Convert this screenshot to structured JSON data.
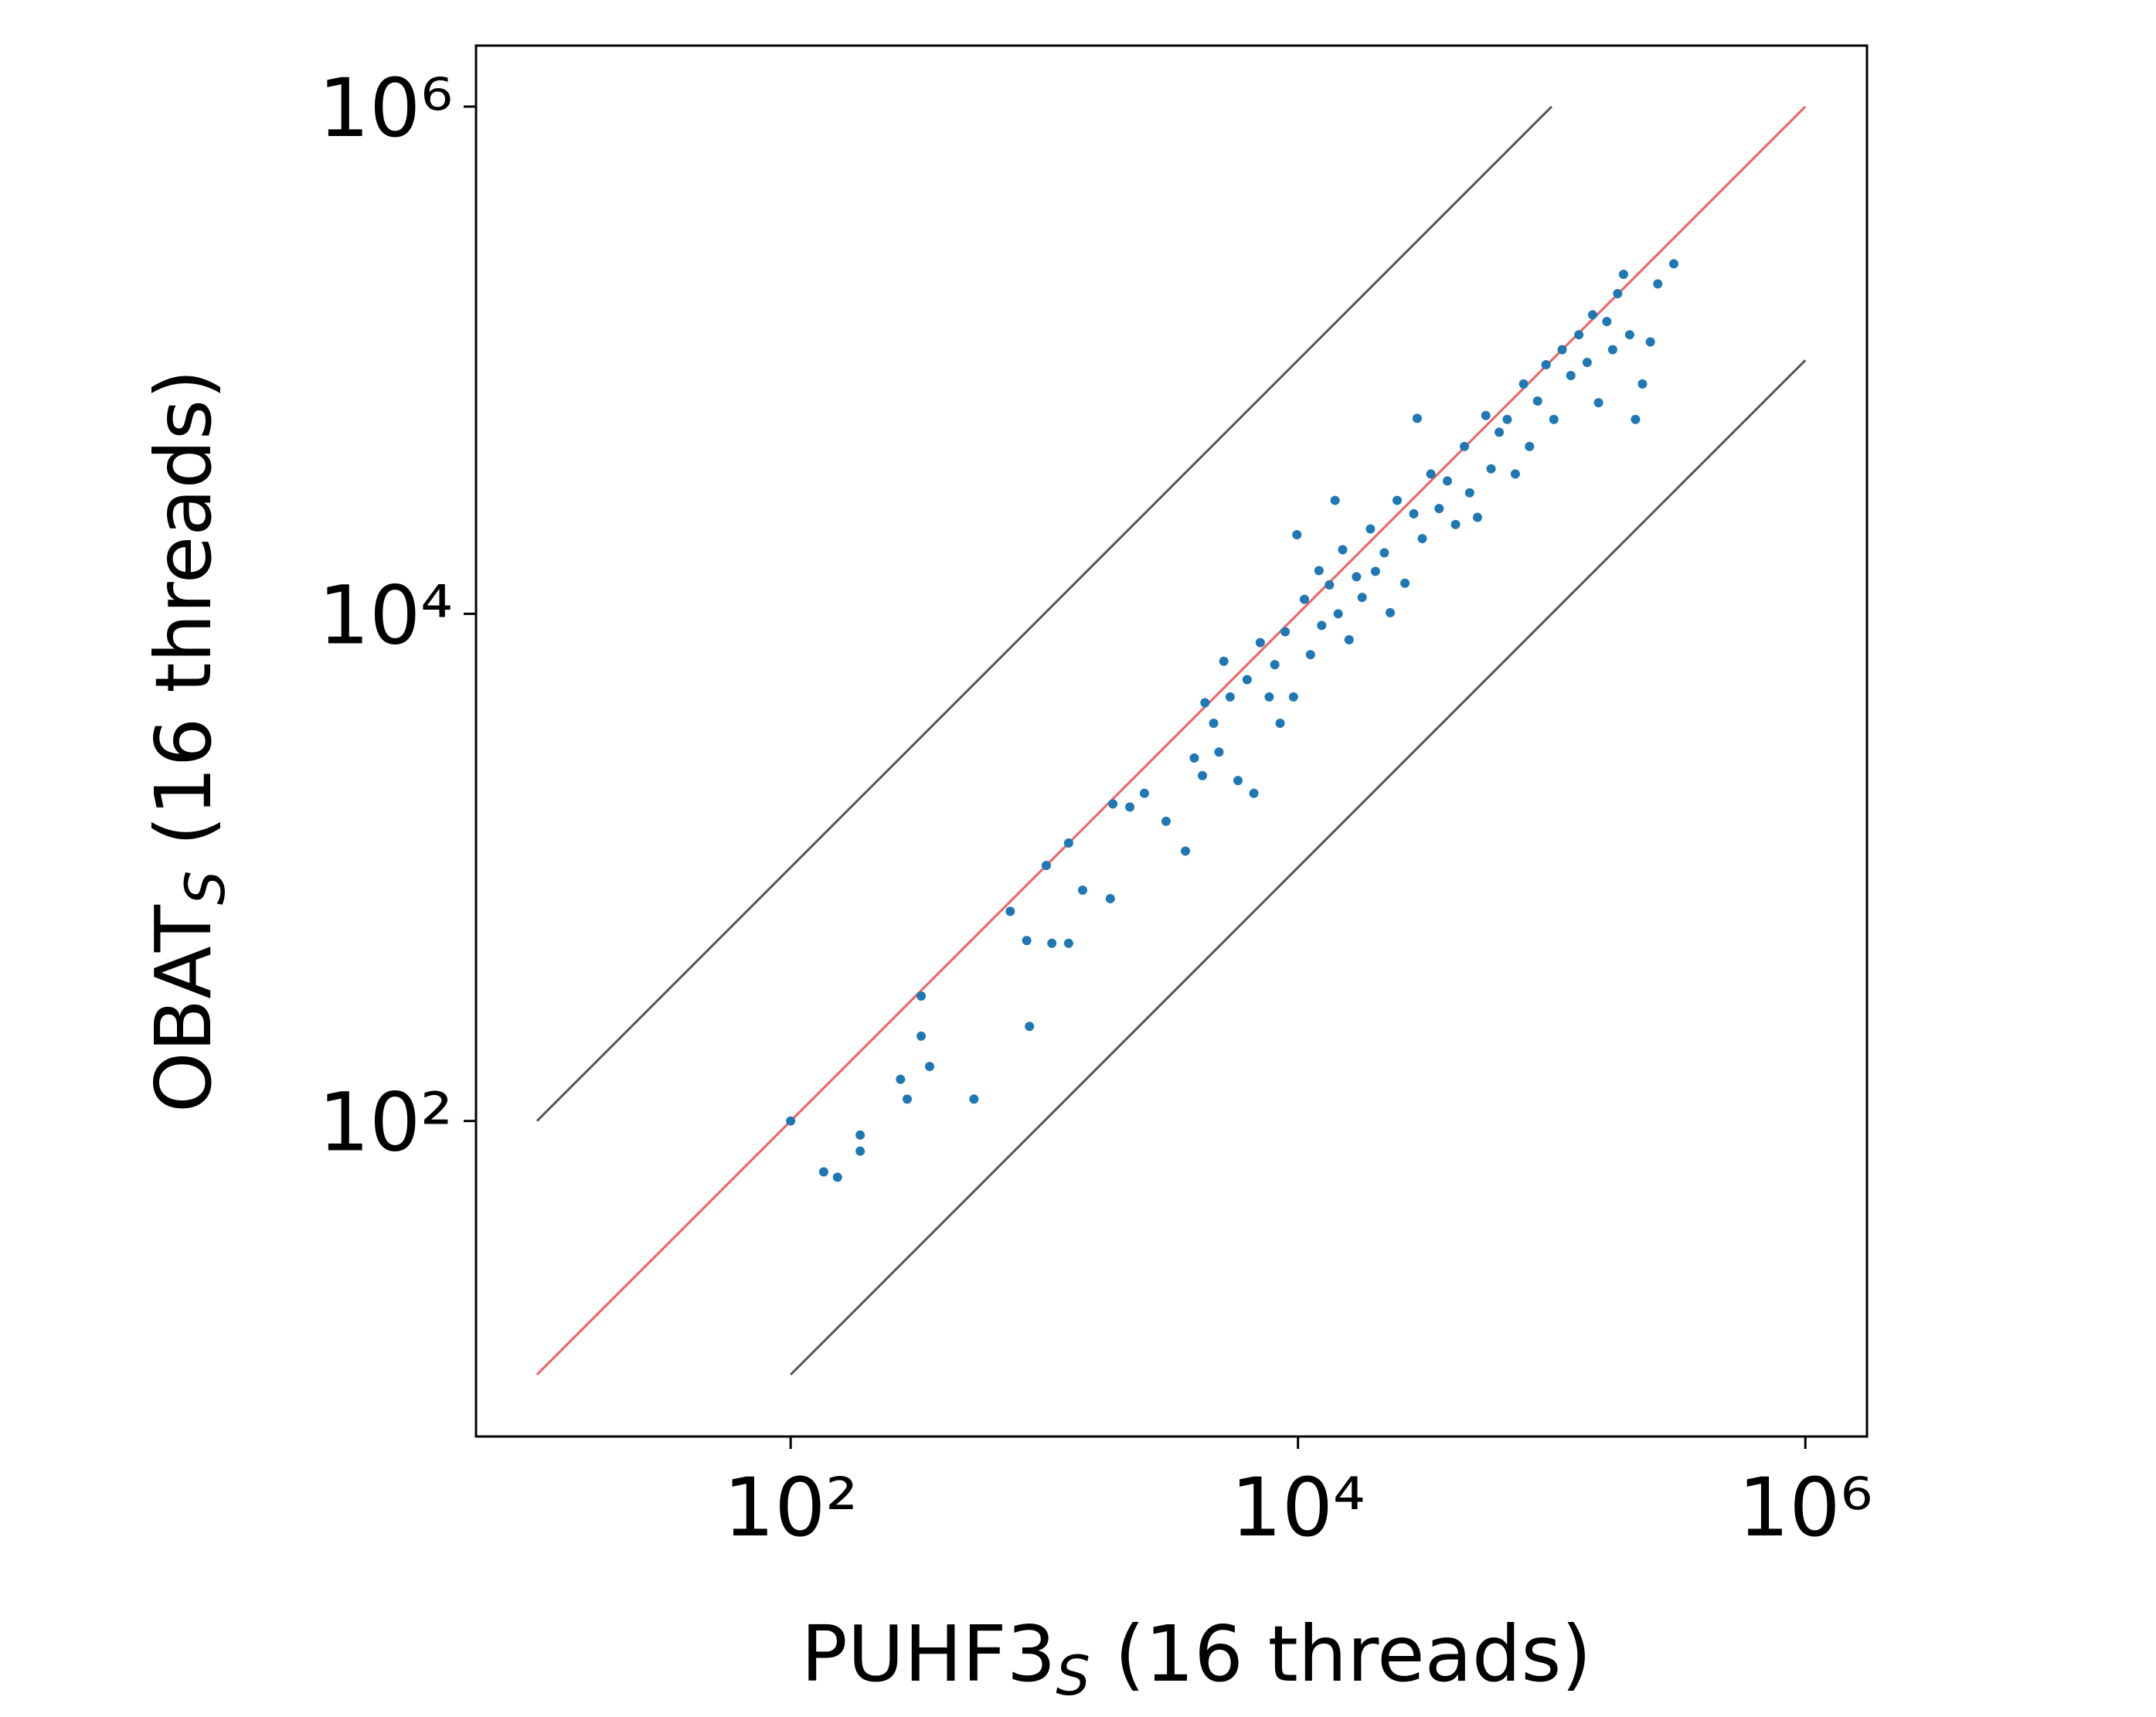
{
  "chart_data": {
    "type": "scatter",
    "xlabel": {
      "main": "PUHF3",
      "sub": "S",
      "rest": " (16 threads)"
    },
    "ylabel": {
      "main": "OBAT",
      "sub": "S",
      "rest": " (16 threads)"
    },
    "xscale": "log",
    "yscale": "log",
    "xlim": [
      5.75,
      1750000
    ],
    "ylim": [
      5.7,
      1740000
    ],
    "xticks": [
      {
        "value": 100,
        "label": "10²"
      },
      {
        "value": 10000,
        "label": "10⁴"
      },
      {
        "value": 1000000,
        "label": "10⁶"
      }
    ],
    "yticks": [
      {
        "value": 100,
        "label": "10²"
      },
      {
        "value": 10000,
        "label": "10⁴"
      },
      {
        "value": 1000000,
        "label": "10⁶"
      }
    ],
    "lines": [
      {
        "color": "#f06060",
        "x": [
          10,
          1000000
        ],
        "y": [
          10,
          1000000
        ]
      },
      {
        "color": "#555555",
        "x": [
          10,
          100000
        ],
        "y": [
          100,
          1000000
        ]
      },
      {
        "color": "#555555",
        "x": [
          100,
          1000000
        ],
        "y": [
          10,
          100000
        ]
      }
    ],
    "series": [
      {
        "color": "#1f77b4",
        "x": [
          100,
          135,
          153,
          188,
          188,
          271,
          288,
          327,
          327,
          353,
          528,
          734,
          852,
          874,
          1018,
          1071,
          1247,
          1247,
          1416,
          1820,
          1863,
          2173,
          2480,
          3020,
          3600,
          3900,
          4200,
          4300,
          4650,
          4880,
          5100,
          5400,
          5800,
          6300,
          6700,
          7100,
          7700,
          8100,
          8500,
          8900,
          9600,
          9900,
          10600,
          11200,
          12100,
          12400,
          13300,
          14400,
          15000,
          15900,
          17000,
          17900,
          19300,
          20200,
          21900,
          23100,
          24600,
          26400,
          28600,
          30900,
          33400,
          36000,
          38800,
          41800,
          45300,
          47500,
          51000,
          55000,
          57700,
          62100,
          66800,
          71900,
          77500,
          81800,
          88000,
          95000,
          102000,
          110000,
          119000,
          128000,
          138000,
          145000,
          153000,
          165000,
          174000,
          182000,
          192000,
          203000,
          214000,
          228000,
          245000,
          262000,
          303000,
          29500,
          14000
        ],
        "y": [
          100,
          63,
          60,
          88,
          76,
          146,
          122,
          311,
          216,
          164,
          122,
          671,
          515,
          236,
          1018,
          502,
          502,
          1247,
          813,
          753,
          1780,
          1730,
          1960,
          1520,
          1160,
          2700,
          2300,
          4460,
          3700,
          2850,
          6500,
          4700,
          2200,
          5500,
          1960,
          7700,
          4700,
          6300,
          3700,
          8500,
          4700,
          20500,
          11400,
          6900,
          14800,
          9000,
          13000,
          10000,
          17900,
          7900,
          14000,
          11600,
          21600,
          14700,
          17400,
          10100,
          28000,
          13200,
          24800,
          19800,
          35600,
          26000,
          33400,
          22500,
          45700,
          30000,
          24000,
          60500,
          37300,
          52000,
          58400,
          35600,
          80600,
          45700,
          69000,
          96000,
          58400,
          110000,
          87000,
          126000,
          98000,
          151000,
          68000,
          142000,
          110000,
          183000,
          218000,
          126000,
          58400,
          80600,
          118000,
          200000,
          240000,
          59000,
          28000
        ]
      }
    ]
  }
}
